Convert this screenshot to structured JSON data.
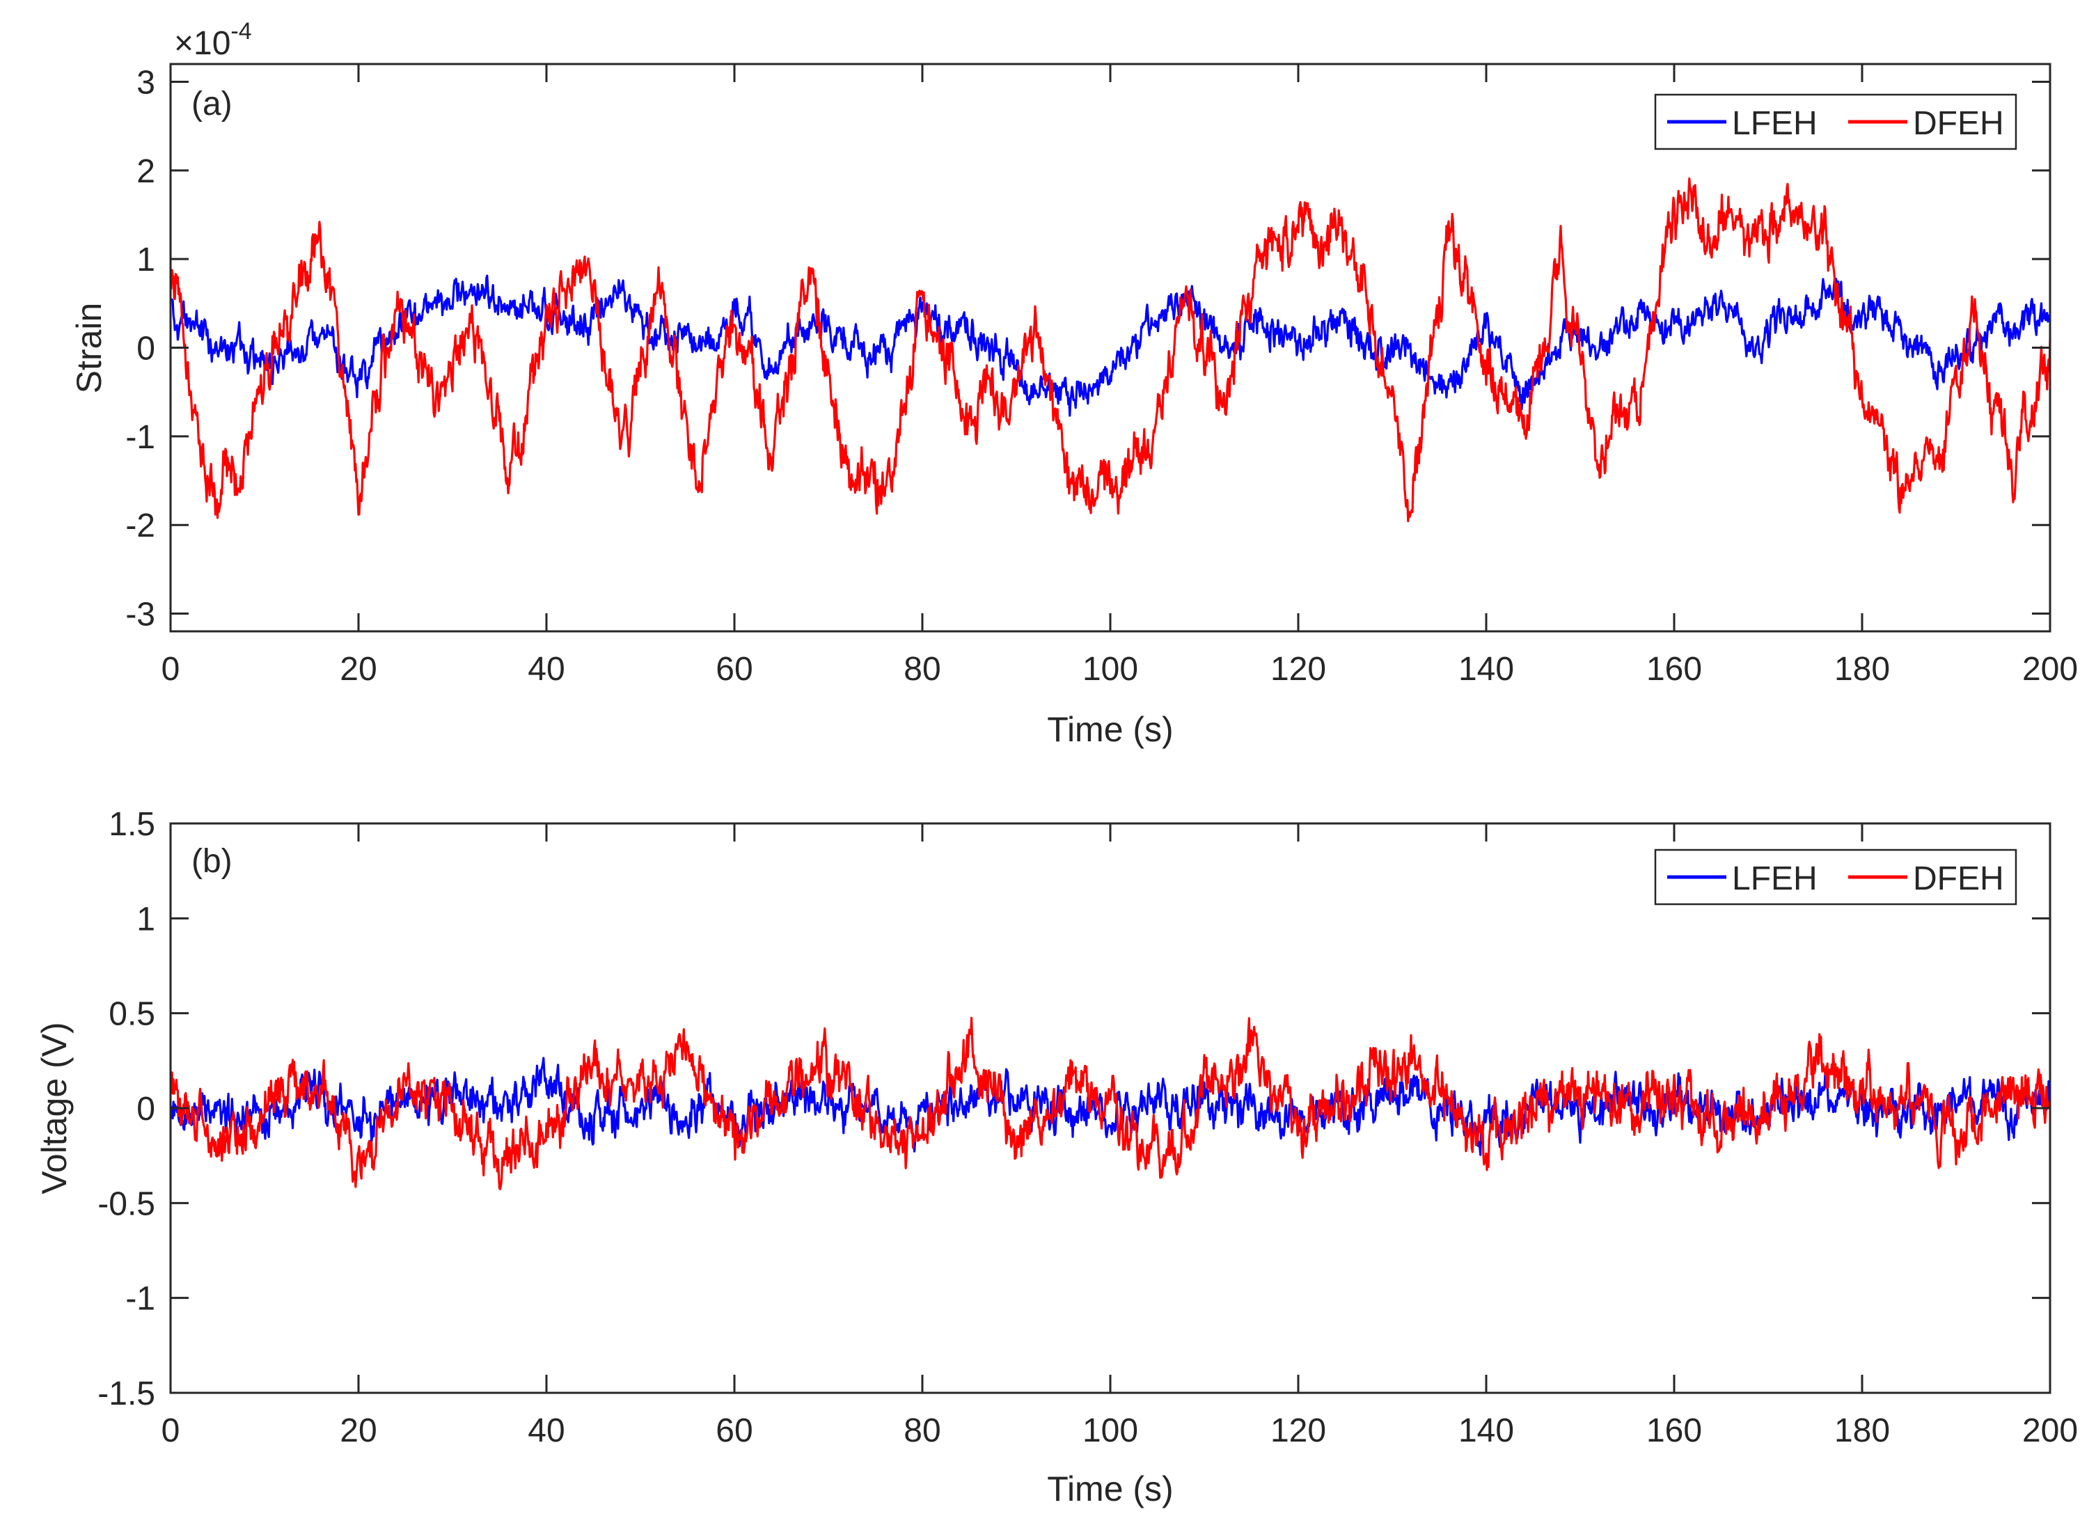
{
  "chart_data": [
    {
      "type": "line",
      "panel_label": "(a)",
      "title": "",
      "xlabel": "Time (s)",
      "ylabel": "Strain",
      "exponent_label": "×10",
      "exponent_power": "-4",
      "xlim": [
        0,
        200
      ],
      "ylim": [
        -3.2,
        3.2
      ],
      "xticks": [
        0,
        20,
        40,
        60,
        80,
        100,
        120,
        140,
        160,
        180,
        200
      ],
      "xtick_labels": [
        "0",
        "20",
        "40",
        "60",
        "80",
        "100",
        "120",
        "140",
        "160",
        "180",
        "200"
      ],
      "yticks": [
        -3,
        -2,
        -1,
        0,
        1,
        2,
        3
      ],
      "ytick_labels": [
        "-3",
        "-2",
        "-1",
        "0",
        "1",
        "2",
        "3"
      ],
      "legend": {
        "position": "top-right",
        "entries": [
          "LFEH",
          "DFEH"
        ]
      },
      "series": [
        {
          "name": "LFEH",
          "color": "#0000ff",
          "x": [
            0,
            4,
            8,
            12,
            16,
            20,
            24,
            28,
            32,
            36,
            40,
            44,
            48,
            52,
            56,
            60,
            64,
            68,
            72,
            76,
            80,
            84,
            88,
            92,
            96,
            100,
            104,
            108,
            112,
            116,
            120,
            124,
            128,
            132,
            136,
            140,
            144,
            148,
            152,
            156,
            160,
            164,
            168,
            172,
            176,
            180,
            184,
            188,
            192,
            196,
            200
          ],
          "values": [
            0.4,
            0.1,
            0.0,
            -0.2,
            0.1,
            -0.3,
            0.2,
            0.5,
            0.6,
            0.4,
            0.5,
            0.3,
            0.6,
            0.2,
            0.0,
            0.5,
            -0.2,
            0.3,
            0.1,
            -0.1,
            0.4,
            0.2,
            0.0,
            -0.4,
            -0.6,
            -0.3,
            0.2,
            0.5,
            0.0,
            0.3,
            0.1,
            0.4,
            0.0,
            -0.1,
            -0.5,
            0.3,
            -0.5,
            0.2,
            0.0,
            0.4,
            0.2,
            0.5,
            0.1,
            0.3,
            0.6,
            0.4,
            0.2,
            -0.3,
            0.1,
            0.3,
            0.4
          ],
          "noise": 0.35
        },
        {
          "name": "DFEH",
          "color": "#ff0000",
          "x": [
            0,
            4,
            8,
            12,
            16,
            20,
            24,
            28,
            32,
            36,
            40,
            44,
            48,
            52,
            56,
            60,
            64,
            68,
            72,
            76,
            80,
            84,
            88,
            92,
            96,
            100,
            104,
            108,
            112,
            116,
            120,
            124,
            128,
            132,
            136,
            140,
            144,
            148,
            152,
            156,
            160,
            164,
            168,
            172,
            176,
            180,
            184,
            188,
            192,
            196,
            200
          ],
          "values": [
            0.8,
            -1.5,
            -1.2,
            0.2,
            1.4,
            -1.6,
            0.5,
            -0.6,
            0.4,
            -1.4,
            0.2,
            1.1,
            -1.2,
            0.7,
            -1.5,
            0.4,
            -1.2,
            0.8,
            -1.3,
            -1.6,
            0.6,
            -0.8,
            -0.6,
            0.3,
            -1.8,
            -1.4,
            -1.1,
            0.5,
            -0.6,
            0.9,
            1.2,
            1.4,
            0.3,
            -1.6,
            1.2,
            -0.2,
            -0.8,
            0.9,
            -1.2,
            -0.6,
            1.6,
            1.4,
            1.2,
            1.5,
            1.3,
            -0.4,
            -1.5,
            -1.1,
            0.2,
            -1.4,
            0.0
          ],
          "noise": 0.55
        }
      ]
    },
    {
      "type": "line",
      "panel_label": "(b)",
      "title": "",
      "xlabel": "Time (s)",
      "ylabel": "Voltage (V)",
      "xlim": [
        0,
        200
      ],
      "ylim": [
        -1.5,
        1.5
      ],
      "xticks": [
        0,
        20,
        40,
        60,
        80,
        100,
        120,
        140,
        160,
        180,
        200
      ],
      "xtick_labels": [
        "0",
        "20",
        "40",
        "60",
        "80",
        "100",
        "120",
        "140",
        "160",
        "180",
        "200"
      ],
      "yticks": [
        -1.5,
        -1,
        -0.5,
        0,
        0.5,
        1,
        1.5
      ],
      "ytick_labels": [
        "-1.5",
        "-1",
        "-0.5",
        "0",
        "0.5",
        "1",
        "1.5"
      ],
      "legend": {
        "position": "top-right",
        "entries": [
          "LFEH",
          "DFEH"
        ]
      },
      "series": [
        {
          "name": "LFEH",
          "color": "#0000ff",
          "x": [
            0,
            5,
            10,
            15,
            20,
            25,
            30,
            35,
            40,
            45,
            50,
            55,
            60,
            65,
            70,
            75,
            80,
            85,
            90,
            95,
            100,
            105,
            110,
            115,
            120,
            125,
            130,
            135,
            140,
            145,
            150,
            155,
            160,
            165,
            170,
            175,
            180,
            185,
            190,
            195,
            200
          ],
          "values": [
            0.0,
            0.05,
            -0.05,
            0.1,
            -0.05,
            0.0,
            0.05,
            0.0,
            0.1,
            -0.05,
            0.0,
            0.05,
            -0.05,
            0.0,
            0.05,
            0.0,
            -0.05,
            0.05,
            0.0,
            0.05,
            -0.05,
            0.0,
            0.05,
            0.0,
            -0.05,
            0.0,
            0.05,
            0.0,
            -0.05,
            0.05,
            0.0,
            0.05,
            0.0,
            -0.05,
            0.0,
            0.05,
            0.0,
            -0.05,
            0.05,
            0.0,
            0.0
          ],
          "noise": 0.2
        },
        {
          "name": "DFEH",
          "color": "#ff0000",
          "x": [
            0,
            5,
            10,
            15,
            20,
            25,
            30,
            35,
            40,
            45,
            50,
            55,
            60,
            65,
            70,
            75,
            80,
            85,
            90,
            95,
            100,
            105,
            110,
            115,
            120,
            125,
            130,
            135,
            140,
            145,
            150,
            155,
            160,
            165,
            170,
            175,
            180,
            185,
            190,
            195,
            200
          ],
          "values": [
            0.1,
            -0.2,
            0.0,
            0.2,
            -0.3,
            0.1,
            0.0,
            -0.3,
            -0.2,
            0.2,
            0.1,
            0.3,
            -0.2,
            0.0,
            0.2,
            -0.1,
            -0.2,
            0.3,
            -0.2,
            0.1,
            0.0,
            -0.3,
            0.1,
            0.3,
            -0.1,
            0.0,
            0.2,
            0.1,
            -0.2,
            0.0,
            0.1,
            0.0,
            0.0,
            -0.1,
            0.0,
            0.2,
            0.1,
            0.0,
            -0.2,
            0.1,
            0.0
          ],
          "noise": 0.25
        }
      ]
    }
  ]
}
